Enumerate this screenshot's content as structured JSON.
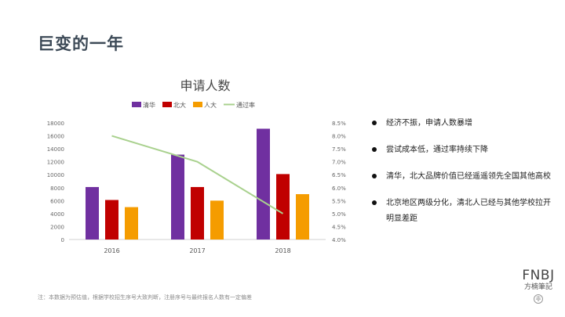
{
  "slide": {
    "title": "巨变的一年"
  },
  "chart_data": {
    "type": "bar",
    "title": "申请人数",
    "categories": [
      "2016",
      "2017",
      "2018"
    ],
    "series": [
      {
        "name": "清华",
        "color": "#7030a0",
        "values": [
          8100,
          13100,
          17100
        ]
      },
      {
        "name": "北大",
        "color": "#c00000",
        "values": [
          6100,
          8100,
          10100
        ]
      },
      {
        "name": "人大",
        "color": "#f59c00",
        "values": [
          5000,
          6000,
          7000
        ]
      }
    ],
    "line_series": {
      "name": "通过率",
      "color": "#a9d18e",
      "values": [
        8.0,
        7.0,
        5.0
      ],
      "axis": "secondary"
    },
    "ylim": [
      0,
      18000
    ],
    "y_ticks": [
      "0",
      "2000",
      "4000",
      "6000",
      "8000",
      "10000",
      "12000",
      "14000",
      "16000",
      "18000"
    ],
    "y2lim": [
      4.0,
      8.5
    ],
    "y2_ticks": [
      "4.0%",
      "4.5%",
      "5.0%",
      "5.5%",
      "6.0%",
      "6.5%",
      "7.0%",
      "7.5%",
      "8.0%",
      "8.5%"
    ],
    "legend_position": "top",
    "grid": false
  },
  "bullets": [
    "经济不振，申请人数暴增",
    "尝试成本低，通过率持续下降",
    "清华，北大品牌价值已经遥遥领先全国其他高校",
    "北京地区两级分化，清北人已经与其他学校拉开明显差距"
  ],
  "footnote": "注：本数据为预估值，根据学校招生序号大致判断，注册序号与最终报名人数有一定偏差",
  "logo": {
    "mark": "FNBJ",
    "text": "方楠筆記",
    "seal": "非"
  }
}
